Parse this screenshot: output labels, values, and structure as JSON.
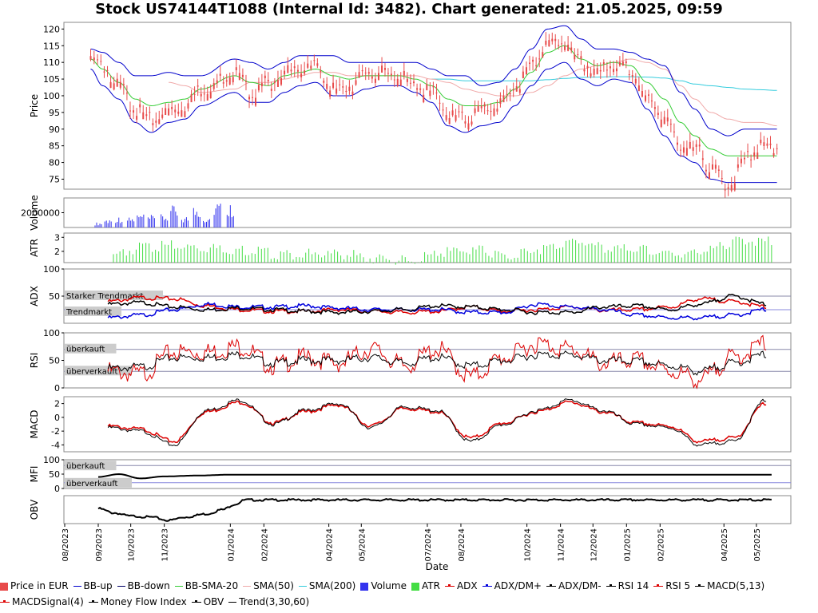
{
  "title": "Stock US74144T1088 (Internal Id: 3482). Chart generated: 21.05.2025, 09:59",
  "colors": {
    "price": "#e84a4a",
    "bb": "#0000cc",
    "bbsma": "#33cc33",
    "sma50": "#f0a8a8",
    "sma200": "#33ccdd",
    "volume": "#3333ee",
    "atr": "#44dd44",
    "red": "#dd0000",
    "blue": "#0000dd",
    "black": "#000000"
  },
  "chart_data": [
    {
      "type": "line",
      "name": "price",
      "ylabel": "Price",
      "ylim": [
        72,
        122
      ],
      "yticks": [
        "75",
        "80",
        "85",
        "90",
        "95",
        "100",
        "105",
        "110",
        "115",
        "120"
      ],
      "x": [
        "2023-08-25",
        "2023-09-05",
        "2023-09-20",
        "2023-10-05",
        "2023-10-20",
        "2023-11-05",
        "2023-11-20",
        "2023-12-05",
        "2024-01-05",
        "2024-01-20",
        "2024-02-05",
        "2024-02-20",
        "2024-03-05",
        "2024-03-20",
        "2024-04-05",
        "2024-04-20",
        "2024-05-05",
        "2024-05-20",
        "2024-06-05",
        "2024-06-20",
        "2024-07-05",
        "2024-07-20",
        "2024-08-05",
        "2024-08-20",
        "2024-09-05",
        "2024-09-20",
        "2024-10-05",
        "2024-10-20",
        "2024-11-05",
        "2024-11-20",
        "2024-12-05",
        "2024-12-20",
        "2025-01-05",
        "2025-01-20",
        "2025-02-05",
        "2025-02-20",
        "2025-03-05",
        "2025-03-20",
        "2025-04-05",
        "2025-04-20",
        "2025-05-05",
        "2025-05-20"
      ],
      "series": [
        {
          "key": "close",
          "values": [
            113,
            110,
            104,
            97,
            94,
            97,
            98,
            103,
            108,
            102,
            105,
            108,
            109,
            110,
            103,
            104,
            108,
            108,
            107,
            104,
            102,
            96,
            94,
            97,
            98,
            104,
            110,
            117,
            117,
            111,
            108,
            110,
            109,
            100,
            95,
            86,
            85,
            80,
            74,
            82,
            86,
            86
          ]
        },
        {
          "key": "bbup",
          "values": [
            114,
            113,
            110,
            106,
            106,
            107,
            106,
            106,
            111,
            110,
            108,
            110,
            112,
            112,
            112,
            110,
            110,
            110,
            110,
            110,
            108,
            106,
            106,
            103,
            104,
            108,
            114,
            120,
            121,
            117,
            114,
            114,
            113,
            111,
            109,
            101,
            96,
            90,
            88,
            90,
            90,
            90
          ]
        },
        {
          "key": "bbdown",
          "values": [
            108,
            103,
            99,
            92,
            89,
            92,
            93,
            97,
            101,
            98,
            98,
            101,
            103,
            104,
            100,
            100,
            102,
            103,
            103,
            101,
            98,
            91,
            89,
            91,
            92,
            97,
            103,
            108,
            110,
            105,
            103,
            105,
            104,
            96,
            88,
            82,
            80,
            75,
            74,
            74,
            74,
            74
          ]
        },
        {
          "key": "bbsma",
          "values": [
            111,
            108,
            104,
            99,
            97,
            98,
            99,
            102,
            106,
            104,
            103,
            106,
            107,
            108,
            106,
            105,
            106,
            106,
            106,
            105,
            103,
            99,
            97,
            97,
            98,
            102,
            107,
            113,
            115,
            111,
            109,
            110,
            109,
            104,
            99,
            92,
            88,
            84,
            82,
            82,
            82,
            82
          ]
        },
        {
          "key": "sma50",
          "values": [
            null,
            null,
            null,
            null,
            null,
            104,
            103,
            101,
            102,
            104,
            104,
            105,
            106,
            107,
            107,
            106,
            106,
            106,
            106,
            106,
            105,
            104,
            102,
            101,
            100,
            100,
            101,
            103,
            106,
            108,
            109,
            110,
            111,
            110,
            108,
            103,
            99,
            95,
            93,
            92,
            92,
            91
          ]
        },
        {
          "key": "sma200",
          "values": [
            null,
            null,
            null,
            null,
            null,
            null,
            null,
            null,
            null,
            null,
            null,
            null,
            null,
            null,
            null,
            null,
            null,
            null,
            null,
            null,
            105,
            105,
            104.5,
            104.5,
            104.5,
            104.5,
            104.5,
            104.8,
            105.2,
            105.5,
            105.6,
            105.7,
            105.7,
            105.6,
            105.3,
            104.5,
            103.5,
            103,
            102.5,
            102,
            101.8,
            101.6
          ]
        }
      ]
    },
    {
      "type": "bar",
      "name": "volume",
      "ylabel": "Volume",
      "ytick": "2000000",
      "ylim": [
        0,
        4000000
      ],
      "x": [
        "2023-09-01",
        "2023-09-10",
        "2023-09-20",
        "2023-10-01",
        "2023-10-10",
        "2023-10-20",
        "2023-11-01",
        "2023-11-10",
        "2023-11-20",
        "2023-12-01",
        "2023-12-10",
        "2023-12-20",
        "2024-01-01"
      ],
      "values": [
        700000,
        1200000,
        1500000,
        1400000,
        1900000,
        1700000,
        1800000,
        3000000,
        1600000,
        3000000,
        1500000,
        3600000,
        3400000
      ]
    },
    {
      "type": "bar",
      "name": "atr",
      "ylabel": "ATR",
      "yticks": [
        "2",
        "3"
      ],
      "ylim": [
        1.2,
        3.3
      ],
      "x": [
        "2023-09-15",
        "2023-10-15",
        "2023-11-15",
        "2023-12-15",
        "2024-01-15",
        "2024-02-15",
        "2024-03-15",
        "2024-04-15",
        "2024-05-15",
        "2024-06-15",
        "2024-07-15",
        "2024-08-15",
        "2024-09-15",
        "2024-10-15",
        "2024-11-15",
        "2024-12-15",
        "2025-01-15",
        "2025-02-15",
        "2025-03-15",
        "2025-04-15",
        "2025-05-15"
      ],
      "values": [
        2.0,
        2.5,
        2.6,
        2.4,
        2.3,
        2.0,
        2.0,
        2.0,
        1.7,
        1.5,
        2.1,
        2.3,
        1.8,
        2.4,
        2.9,
        2.4,
        2.3,
        2.0,
        2.2,
        3.0,
        2.9
      ]
    },
    {
      "type": "line",
      "name": "adx",
      "ylabel": "ADX",
      "ylim": [
        0,
        100
      ],
      "yticks": [
        "50",
        "100"
      ],
      "annotations": [
        "Starker Trendmarkt",
        "Trendmarkt"
      ],
      "x": [
        "2023-09-10",
        "2023-10-10",
        "2023-11-10",
        "2023-12-10",
        "2024-01-10",
        "2024-02-10",
        "2024-03-10",
        "2024-04-10",
        "2024-05-10",
        "2024-06-10",
        "2024-07-10",
        "2024-08-10",
        "2024-09-10",
        "2024-10-10",
        "2024-11-10",
        "2024-12-10",
        "2025-01-10",
        "2025-02-10",
        "2025-03-10",
        "2025-04-10",
        "2025-05-10"
      ],
      "series": [
        {
          "key": "adx",
          "values": [
            40,
            47,
            45,
            32,
            25,
            22,
            22,
            25,
            22,
            20,
            22,
            30,
            22,
            25,
            30,
            24,
            25,
            30,
            45,
            40,
            30
          ]
        },
        {
          "key": "dmplus",
          "values": [
            10,
            15,
            25,
            35,
            30,
            30,
            32,
            28,
            25,
            25,
            25,
            20,
            20,
            35,
            30,
            25,
            15,
            10,
            10,
            15,
            25
          ]
        },
        {
          "key": "dmminus",
          "values": [
            35,
            38,
            30,
            25,
            28,
            25,
            22,
            20,
            22,
            25,
            32,
            30,
            25,
            20,
            20,
            30,
            32,
            25,
            35,
            50,
            35
          ]
        }
      ]
    },
    {
      "type": "line",
      "name": "rsi",
      "ylabel": "RSI",
      "ylim": [
        0,
        100
      ],
      "yticks": [
        "0",
        "50",
        "100"
      ],
      "annotations": [
        "überkauft",
        "überverkauft"
      ],
      "x": [
        "2023-09-10",
        "2023-10-10",
        "2023-11-10",
        "2023-12-10",
        "2024-01-10",
        "2024-02-10",
        "2024-03-10",
        "2024-04-10",
        "2024-05-10",
        "2024-06-10",
        "2024-07-10",
        "2024-08-10",
        "2024-09-10",
        "2024-10-10",
        "2024-11-10",
        "2024-12-10",
        "2025-01-10",
        "2025-02-10",
        "2025-03-10",
        "2025-04-10",
        "2025-05-10"
      ],
      "series": [
        {
          "key": "rsi14",
          "values": [
            35,
            38,
            55,
            55,
            60,
            45,
            50,
            50,
            55,
            45,
            55,
            40,
            50,
            60,
            60,
            50,
            48,
            40,
            30,
            45,
            60
          ]
        },
        {
          "key": "rsi5",
          "values": [
            30,
            25,
            65,
            65,
            75,
            40,
            55,
            45,
            70,
            40,
            70,
            20,
            55,
            80,
            70,
            45,
            50,
            30,
            15,
            55,
            80
          ]
        }
      ]
    },
    {
      "type": "line",
      "name": "macd",
      "ylabel": "MACD",
      "ylim": [
        -5,
        3
      ],
      "yticks": [
        "-4",
        "-2",
        "0",
        "2"
      ],
      "x": [
        "2023-09-10",
        "2023-10-10",
        "2023-11-10",
        "2023-12-10",
        "2024-01-10",
        "2024-02-10",
        "2024-03-10",
        "2024-04-10",
        "2024-05-10",
        "2024-06-10",
        "2024-07-10",
        "2024-08-10",
        "2024-09-10",
        "2024-10-10",
        "2024-11-10",
        "2024-12-10",
        "2025-01-10",
        "2025-02-10",
        "2025-03-10",
        "2025-04-10",
        "2025-05-10"
      ],
      "series": [
        {
          "key": "macd",
          "values": [
            -1.5,
            -2,
            -4,
            1,
            2.5,
            -1,
            1,
            2,
            -1.5,
            1.5,
            1,
            -3.5,
            -1,
            1,
            2.5,
            1,
            -1,
            -1.5,
            -4,
            -3.5,
            2.5
          ]
        },
        {
          "key": "signal",
          "values": [
            -1.3,
            -1.7,
            -3.5,
            0.8,
            2.2,
            -0.8,
            0.8,
            1.8,
            -1.2,
            1.3,
            0.8,
            -3,
            -0.8,
            0.8,
            2.2,
            0.8,
            -0.8,
            -1.3,
            -3.5,
            -3,
            2
          ]
        }
      ]
    },
    {
      "type": "line",
      "name": "mfi",
      "ylabel": "MFI",
      "ylim": [
        0,
        100
      ],
      "yticks": [
        "0",
        "50",
        "100"
      ],
      "annotations": [
        "überkauft",
        "überverkauft"
      ],
      "x": [
        "2023-09-01",
        "2023-09-20",
        "2023-10-10",
        "2023-11-01",
        "2023-12-01",
        "2024-01-01",
        "2025-05-15"
      ],
      "values": [
        40,
        50,
        35,
        42,
        45,
        48,
        48
      ]
    },
    {
      "type": "line",
      "name": "obv",
      "ylabel": "OBV",
      "x": [
        "2023-09-01",
        "2023-09-15",
        "2023-10-01",
        "2023-10-20",
        "2023-11-05",
        "2023-11-20",
        "2023-12-10",
        "2023-12-25",
        "2024-01-05",
        "2024-01-15",
        "2025-05-15"
      ],
      "values": [
        0.2,
        -0.2,
        -0.5,
        -0.6,
        -0.9,
        -0.6,
        -0.3,
        0.1,
        0.6,
        1.0,
        1.0
      ]
    }
  ],
  "xaxis": {
    "label": "Date",
    "ticks": [
      "08/2023",
      "09/2023",
      "10/2023",
      "11/2023",
      "01/2024",
      "02/2024",
      "04/2024",
      "05/2024",
      "07/2024",
      "08/2024",
      "10/2024",
      "11/2024",
      "12/2024",
      "01/2025",
      "02/2025",
      "04/2025",
      "05/2025"
    ],
    "tick_dates": [
      "2023-08-01",
      "2023-09-01",
      "2023-10-01",
      "2023-11-01",
      "2024-01-01",
      "2024-02-01",
      "2024-04-01",
      "2024-05-01",
      "2024-07-01",
      "2024-08-01",
      "2024-10-01",
      "2024-11-01",
      "2024-12-01",
      "2025-01-01",
      "2025-02-01",
      "2025-04-01",
      "2025-05-01"
    ]
  },
  "legend": [
    {
      "label": "Price in EUR",
      "color": "#e84a4a",
      "style": "box"
    },
    {
      "label": "BB-up",
      "color": "#0000cc",
      "style": "line"
    },
    {
      "label": "BB-down",
      "color": "#000066",
      "style": "line"
    },
    {
      "label": "BB-SMA-20",
      "color": "#33cc33",
      "style": "line"
    },
    {
      "label": "SMA(50)",
      "color": "#f0a8a8",
      "style": "line"
    },
    {
      "label": "SMA(200)",
      "color": "#33ccdd",
      "style": "line"
    },
    {
      "label": "Volume",
      "color": "#3333ee",
      "style": "box"
    },
    {
      "label": "ATR",
      "color": "#44dd44",
      "style": "box"
    },
    {
      "label": "ADX",
      "color": "#dd0000",
      "style": "dotline"
    },
    {
      "label": "ADX/DM+",
      "color": "#0000dd",
      "style": "dotline"
    },
    {
      "label": "ADX/DM-",
      "color": "#000000",
      "style": "dotline"
    },
    {
      "label": "RSI 14",
      "color": "#000000",
      "style": "dotline"
    },
    {
      "label": "RSI 5",
      "color": "#dd0000",
      "style": "dotline"
    },
    {
      "label": "MACD(5,13)",
      "color": "#000000",
      "style": "dotline"
    },
    {
      "label": "MACDSignal(4)",
      "color": "#dd0000",
      "style": "dotline"
    },
    {
      "label": "Money Flow Index",
      "color": "#000000",
      "style": "dotline"
    },
    {
      "label": "OBV",
      "color": "#000000",
      "style": "dotline"
    },
    {
      "label": "Trend(3,30,60)",
      "color": "#000000",
      "style": "line"
    }
  ]
}
